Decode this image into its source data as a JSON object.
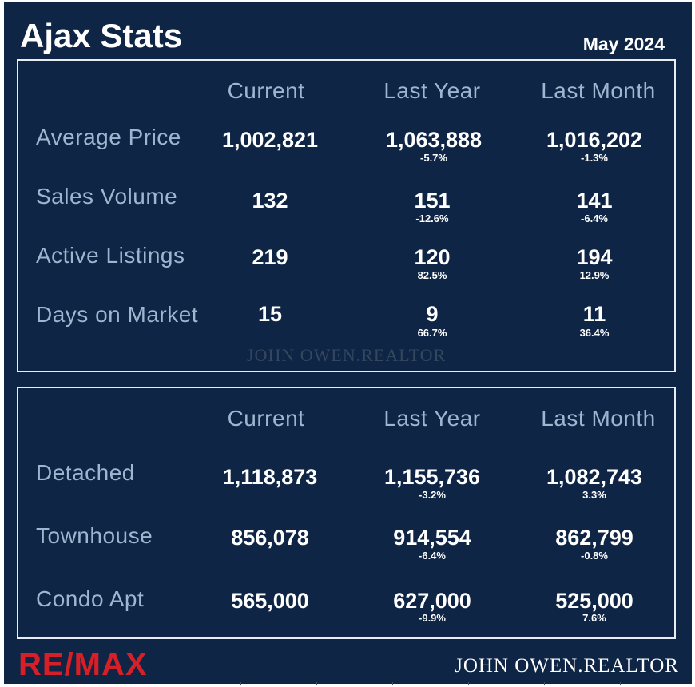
{
  "header": {
    "title": "Ajax Stats",
    "date": "May 2024"
  },
  "columns": [
    "Current",
    "Last Year",
    "Last Month"
  ],
  "market": {
    "rows": [
      {
        "label": "Average Price",
        "current": "1,002,821",
        "last_year": "1,063,888",
        "last_year_change": "-5.7%",
        "last_month": "1,016,202",
        "last_month_change": "-1.3%"
      },
      {
        "label": "Sales Volume",
        "current": "132",
        "last_year": "151",
        "last_year_change": "-12.6%",
        "last_month": "141",
        "last_month_change": "-6.4%"
      },
      {
        "label": "Active Listings",
        "current": "219",
        "last_year": "120",
        "last_year_change": "82.5%",
        "last_month": "194",
        "last_month_change": "12.9%"
      },
      {
        "label": "Days on Market",
        "current": "15",
        "last_year": "9",
        "last_year_change": "66.7%",
        "last_month": "11",
        "last_month_change": "36.4%"
      }
    ],
    "watermark": "JOHN OWEN.REALTOR"
  },
  "property_types": {
    "rows": [
      {
        "label": "Detached",
        "current": "1,118,873",
        "last_year": "1,155,736",
        "last_year_change": "-3.2%",
        "last_month": "1,082,743",
        "last_month_change": "3.3%"
      },
      {
        "label": "Townhouse",
        "current": "856,078",
        "last_year": "914,554",
        "last_year_change": "-6.4%",
        "last_month": "862,799",
        "last_month_change": "-0.8%"
      },
      {
        "label": "Condo Apt",
        "current": "565,000",
        "last_year": "627,000",
        "last_year_change": "-9.9%",
        "last_month": "525,000",
        "last_month_change": "7.6%"
      }
    ]
  },
  "footer": {
    "logo": "RE/MAX",
    "name": "JOHN OWEN.REALTOR"
  },
  "colors": {
    "background": "#0f2545",
    "label": "#9eb6cf",
    "value": "#ffffff",
    "logo": "#d61f26"
  }
}
